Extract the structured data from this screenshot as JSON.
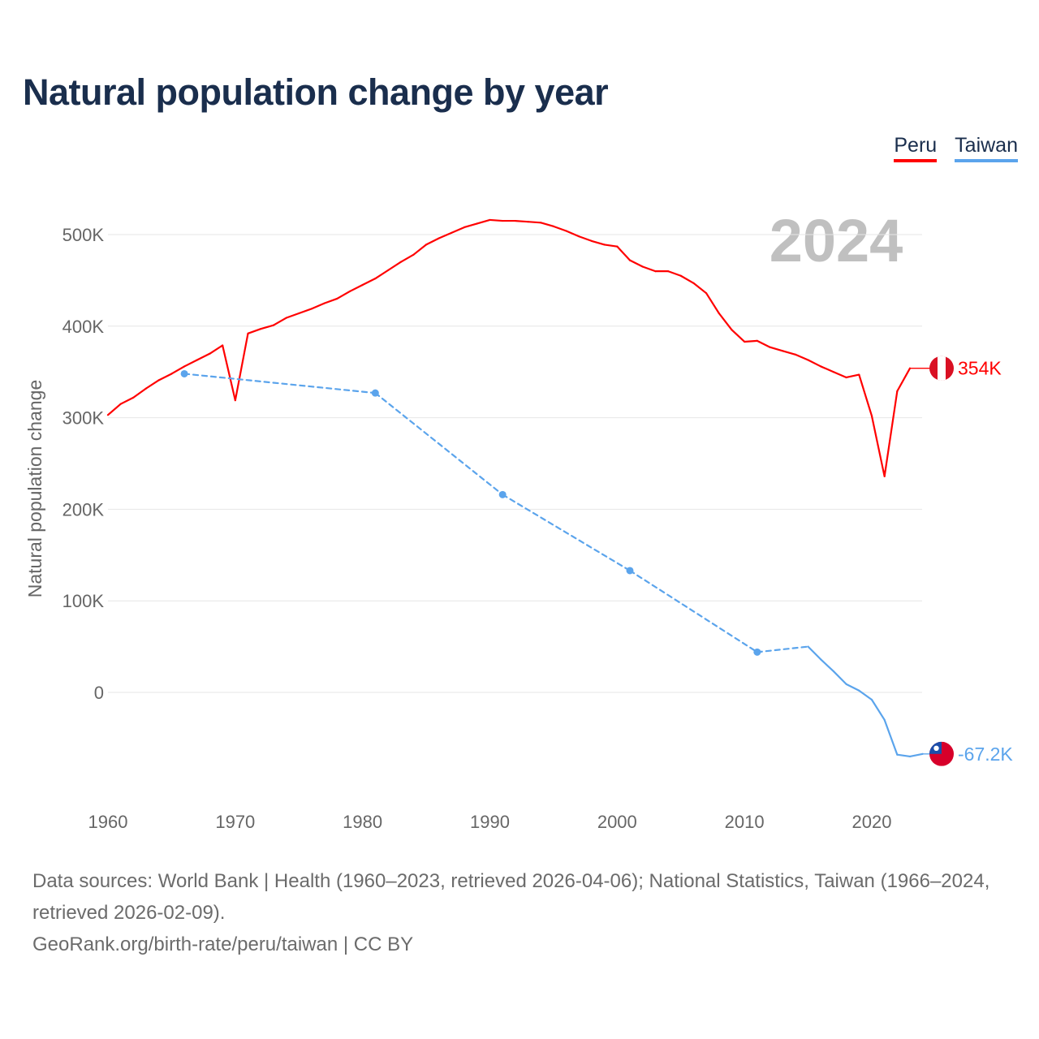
{
  "title": "Natural population change by year",
  "legend": [
    {
      "label": "Peru",
      "color": "#ff0000"
    },
    {
      "label": "Taiwan",
      "color": "#5ba4ec"
    }
  ],
  "year_overlay": "2024",
  "source": {
    "line1": "Data sources: World Bank | Health (1960–2023, retrieved 2026-04-06); National Statistics, Taiwan (1966–2024, retrieved 2026-02-09).",
    "line2": "GeoRank.org/birth-rate/peru/taiwan | CC BY"
  },
  "chart_data": {
    "type": "line",
    "title": "Natural population change by year",
    "xlabel": "",
    "ylabel": "Natural population change",
    "xlim": [
      1960,
      2024
    ],
    "ylim": [
      -100000,
      560000
    ],
    "x_ticks": [
      "1960",
      "1970",
      "1980",
      "1990",
      "2000",
      "2010",
      "2020"
    ],
    "y_ticks": [
      {
        "value": 0,
        "label": "0"
      },
      {
        "value": 100000,
        "label": "100K"
      },
      {
        "value": 200000,
        "label": "200K"
      },
      {
        "value": 300000,
        "label": "300K"
      },
      {
        "value": 400000,
        "label": "400K"
      },
      {
        "value": 500000,
        "label": "500K"
      }
    ],
    "grid": true,
    "legend_position": "top-right",
    "series": [
      {
        "name": "Peru",
        "color": "#ff0000",
        "end_label": "354K",
        "flag": "peru-flag",
        "points": [
          [
            1960,
            303000
          ],
          [
            1961,
            315000
          ],
          [
            1962,
            322000
          ],
          [
            1963,
            332000
          ],
          [
            1964,
            341000
          ],
          [
            1965,
            348000
          ],
          [
            1966,
            356000
          ],
          [
            1967,
            363000
          ],
          [
            1968,
            370000
          ],
          [
            1969,
            379000
          ],
          [
            1970,
            319000
          ],
          [
            1971,
            392000
          ],
          [
            1972,
            397000
          ],
          [
            1973,
            401000
          ],
          [
            1974,
            409000
          ],
          [
            1975,
            414000
          ],
          [
            1976,
            419000
          ],
          [
            1977,
            425000
          ],
          [
            1978,
            430000
          ],
          [
            1979,
            438000
          ],
          [
            1980,
            445000
          ],
          [
            1981,
            452000
          ],
          [
            1982,
            461000
          ],
          [
            1983,
            470000
          ],
          [
            1984,
            478000
          ],
          [
            1985,
            489000
          ],
          [
            1986,
            496000
          ],
          [
            1987,
            502000
          ],
          [
            1988,
            508000
          ],
          [
            1989,
            512000
          ],
          [
            1990,
            516000
          ],
          [
            1991,
            515000
          ],
          [
            1992,
            515000
          ],
          [
            1993,
            514000
          ],
          [
            1994,
            513000
          ],
          [
            1995,
            509000
          ],
          [
            1996,
            504000
          ],
          [
            1997,
            498000
          ],
          [
            1998,
            493000
          ],
          [
            1999,
            489000
          ],
          [
            2000,
            487000
          ],
          [
            2001,
            472000
          ],
          [
            2002,
            465000
          ],
          [
            2003,
            460000
          ],
          [
            2004,
            460000
          ],
          [
            2005,
            455000
          ],
          [
            2006,
            447000
          ],
          [
            2007,
            436000
          ],
          [
            2008,
            414000
          ],
          [
            2009,
            396000
          ],
          [
            2010,
            383000
          ],
          [
            2011,
            384000
          ],
          [
            2012,
            377000
          ],
          [
            2013,
            373000
          ],
          [
            2014,
            369000
          ],
          [
            2015,
            363000
          ],
          [
            2016,
            356000
          ],
          [
            2017,
            350000
          ],
          [
            2018,
            344000
          ],
          [
            2019,
            347000
          ],
          [
            2020,
            302000
          ],
          [
            2021,
            236000
          ],
          [
            2022,
            329000
          ],
          [
            2023,
            354000
          ]
        ]
      },
      {
        "name": "Taiwan",
        "color": "#5ba4ec",
        "end_label": "-67.2K",
        "flag": "taiwan-flag",
        "points": [
          [
            1966,
            348000
          ],
          [
            1981,
            327000
          ],
          [
            1991,
            216000
          ],
          [
            2001,
            133000
          ],
          [
            2011,
            44000
          ],
          [
            2015,
            50000
          ],
          [
            2016,
            36000
          ],
          [
            2017,
            23000
          ],
          [
            2018,
            9000
          ],
          [
            2019,
            2000
          ],
          [
            2020,
            -8000
          ],
          [
            2021,
            -30000
          ],
          [
            2022,
            -68000
          ],
          [
            2023,
            -70000
          ],
          [
            2024,
            -67200
          ]
        ]
      }
    ]
  }
}
